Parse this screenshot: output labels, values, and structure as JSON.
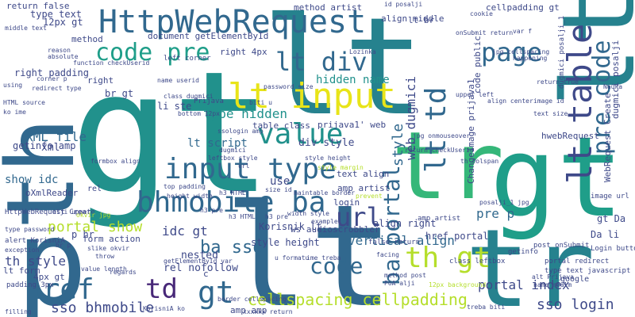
{
  "palette": {
    "teal": "#21918c",
    "blue": "#31688e",
    "indigo": "#3e4989",
    "purple": "#482878",
    "dark": "#440154",
    "green": "#35b779",
    "lime": "#b5de2b",
    "yellow": "#e8e419",
    "sea": "#1f9e89",
    "bluegrey": "#26828e"
  },
  "words": [
    {
      "text": "gt"
    },
    {
      "text": "lt"
    },
    {
      "text": "lt"
    },
    {
      "text": "gt"
    },
    {
      "text": "p"
    },
    {
      "text": "lt"
    },
    {
      "text": "tr"
    },
    {
      "text": "gt"
    },
    {
      "text": "tr"
    },
    {
      "text": "th"
    },
    {
      "text": "lt"
    },
    {
      "text": "HttpWebRequest"
    },
    {
      "text": "lt table"
    },
    {
      "text": "pre code"
    },
    {
      "text": "code pre"
    },
    {
      "text": "page"
    },
    {
      "text": "lt div"
    },
    {
      "text": "lt input"
    },
    {
      "text": "value"
    },
    {
      "text": "input type"
    },
    {
      "text": "bhmobile ba"
    },
    {
      "text": "portal show"
    },
    {
      "text": "lt td"
    },
    {
      "text": "url"
    },
    {
      "text": "code"
    },
    {
      "text": "ba portal"
    },
    {
      "text": "th gt"
    },
    {
      "text": "href"
    },
    {
      "text": "td"
    },
    {
      "text": "gt"
    },
    {
      "text": "cellspacing cellpadding"
    },
    {
      "text": "sso bhmobile"
    },
    {
      "text": "sso login"
    },
    {
      "text": "hidden name"
    },
    {
      "text": "type hidden"
    },
    {
      "text": "lt script"
    },
    {
      "text": "XML file"
    },
    {
      "text": "show idc"
    },
    {
      "text": "idc gt"
    },
    {
      "text": "ba sso"
    },
    {
      "text": "vertical align"
    },
    {
      "text": "style"
    },
    {
      "text": "web dugmici"
    },
    {
      "text": "pre p"
    },
    {
      "text": "align right"
    },
    {
      "text": "portal index"
    },
    {
      "text": "th style"
    },
    {
      "text": "nested"
    },
    {
      "text": "rel nofollow"
    },
    {
      "text": "style height"
    },
    {
      "text": "href portal"
    },
    {
      "text": "Da li"
    },
    {
      "text": "gt Da"
    },
    {
      "text": "hwebRequest"
    },
    {
      "text": "use"
    },
    {
      "text": "div style"
    },
    {
      "text": "table class"
    },
    {
      "text": "prijava1' web"
    },
    {
      "text": "12px gt"
    },
    {
      "text": "type text"
    },
    {
      "text": "method artist"
    },
    {
      "text": "align middle"
    },
    {
      "text": "cellpadding gt"
    },
    {
      "text": "document getElementById"
    },
    {
      "text": "method"
    },
    {
      "text": "lt br"
    },
    {
      "text": "right 4px"
    },
    {
      "text": "right padding"
    },
    {
      "text": "xml"
    },
    {
      "text": "getinfo amp"
    },
    {
      "text": "oXmlReader"
    },
    {
      "text": "4px gt"
    },
    {
      "text": "lt form"
    },
    {
      "text": "Korisnik lt"
    },
    {
      "text": "ws audioscrobbler"
    },
    {
      "text": "amp artist"
    },
    {
      "text": "login"
    },
    {
      "text": "return false"
    },
    {
      "text": "amp amp"
    },
    {
      "text": "p hr"
    },
    {
      "text": "alert KorisniA"
    },
    {
      "text": "form action"
    },
    {
      "text": "ChangeImage prijava1"
    },
    {
      "text": "li ste"
    },
    {
      "text": "br gt"
    },
    {
      "text": "WebRequest Create"
    },
    {
      "text": "dugmici posalji"
    },
    {
      "text": "code public"
    },
    {
      "text": "text align"
    },
    {
      "text": "HttpWebRequest Create"
    },
    {
      "text": "middle text"
    },
    {
      "text": "type password"
    },
    {
      "text": "right"
    },
    {
      "text": "Prijava"
    },
    {
      "text": "post onSubmit"
    },
    {
      "text": "image url"
    },
    {
      "text": "padding 3px"
    },
    {
      "text": "portal redirect"
    },
    {
      "text": "type text javascript"
    },
    {
      "text": "class leftbox"
    },
    {
      "text": "google"
    },
    {
      "text": "Login button"
    },
    {
      "text": "amp artist"
    },
    {
      "text": "false return"
    },
    {
      "text": "dugmici posalji_1"
    },
    {
      "text": "name userid"
    },
    {
      "text": "url"
    },
    {
      "text": "style margin"
    },
    {
      "text": "style height"
    },
    {
      "text": "th colspan"
    },
    {
      "text": "h3 HTML"
    },
    {
      "text": "example"
    },
    {
      "text": "prevent"
    },
    {
      "text": "facing"
    },
    {
      "text": "happening"
    },
    {
      "text": "ssologin amp"
    },
    {
      "text": "left corner"
    },
    {
      "text": "formbox align"
    },
    {
      "text": "maintable border"
    },
    {
      "text": "return checkUserid"
    },
    {
      "text": "size id"
    },
    {
      "text": "height width"
    },
    {
      "text": "top padding"
    },
    {
      "text": "getElementById var"
    },
    {
      "text": "class dugmici"
    },
    {
      "text": "exception"
    },
    {
      "text": "throw"
    },
    {
      "text": "regards"
    },
    {
      "text": "value length"
    },
    {
      "text": "KorisniA ko"
    },
    {
      "text": "12px background"
    },
    {
      "text": "treba biti"
    },
    {
      "text": "var f"
    },
    {
      "text": "leftbox style"
    },
    {
      "text": "bottom 12px"
    },
    {
      "text": "using"
    },
    {
      "text": "reason"
    },
    {
      "text": "absolute"
    },
    {
      "text": "image id"
    },
    {
      "text": "return true"
    },
    {
      "text": "align center"
    },
    {
      "text": "text size"
    },
    {
      "text": "upper left"
    },
    {
      "text": "ime treba"
    },
    {
      "text": "h3 pre"
    },
    {
      "text": "method post"
    },
    {
      "text": "PoA alji"
    },
    {
      "text": "alt Prijava"
    },
    {
      "text": "name realm"
    },
    {
      "text": "alji upper"
    },
    {
      "text": "slike okvir"
    },
    {
      "text": "u formatu"
    },
    {
      "text": "h3 HTML"
    },
    {
      "text": "corner p"
    },
    {
      "text": "filling"
    },
    {
      "text": "function checkUserid"
    },
    {
      "text": "Lozinka"
    },
    {
      "text": "biti u"
    },
    {
      "text": "password size"
    },
    {
      "text": "jpg cellspacing"
    },
    {
      "text": "onSubmit return"
    },
    {
      "text": "cookie"
    },
    {
      "text": "id posalji"
    },
    {
      "text": "width style"
    },
    {
      "text": "redirect type"
    },
    {
      "text": "HTML source"
    },
    {
      "text": "ko ime"
    },
    {
      "text": "Nauka"
    },
    {
      "text": "okvir jpg"
    },
    {
      "text": "jpg onmouseover"
    },
    {
      "text": "border cellspacing"
    },
    {
      "text": "xxxxxx return"
    },
    {
      "text": "posalji_1 jpg"
    },
    {
      "text": "h3 pre"
    },
    {
      "text": "getinfo"
    },
    {
      "text": "dugmici"
    },
    {
      "text": "rel"
    },
    {
      "text": "c"
    },
    {
      "text": "hr p"
    },
    {
      "text": "align top"
    }
  ]
}
